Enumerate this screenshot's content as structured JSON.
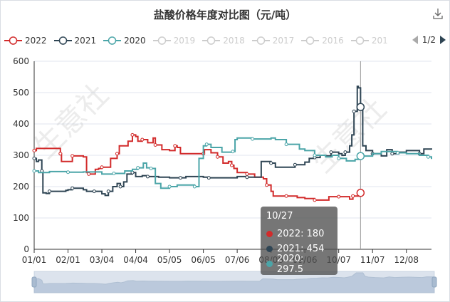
{
  "title": "盐酸价格年度对比图（元/吨）",
  "legend": [
    {
      "label": "2022",
      "color": "#d22b2b",
      "active": true
    },
    {
      "label": "2021",
      "color": "#2f4554",
      "active": true
    },
    {
      "label": "2020",
      "color": "#4ba5a8",
      "active": true
    },
    {
      "label": "2019",
      "color": "#cccccc",
      "active": false
    },
    {
      "label": "2018",
      "color": "#cccccc",
      "active": false
    },
    {
      "label": "2017",
      "color": "#cccccc",
      "active": false
    },
    {
      "label": "2016",
      "color": "#cccccc",
      "active": false
    },
    {
      "label": "201",
      "color": "#cccccc",
      "active": false
    }
  ],
  "legend_page": "1/2",
  "watermark": [
    "生意社",
    "生意社"
  ],
  "tooltip": {
    "date": "10/27",
    "rows": [
      {
        "text": "2022: 180",
        "color": "#d22b2b"
      },
      {
        "text": "2021: 454",
        "color": "#2f4554"
      },
      {
        "text": "2020: 297.5",
        "color": "#4ba5a8"
      }
    ]
  },
  "chart_data": {
    "type": "line",
    "title": "盐酸价格年度对比图（元/吨）",
    "x_ticks": [
      "01/01",
      "02/01",
      "03/04",
      "04/04",
      "05/05",
      "06/05",
      "07/06",
      "08/06",
      "09/06",
      "10/07",
      "11/07",
      "12/08"
    ],
    "ylim": [
      0,
      600
    ],
    "y_ticks": [
      0,
      100,
      200,
      300,
      400,
      500,
      600
    ],
    "grid": true,
    "hover_x": "10/27",
    "series": [
      {
        "name": "2022",
        "color": "#d22b2b",
        "points": [
          [
            "01/01",
            315
          ],
          [
            "01/03",
            322
          ],
          [
            "01/20",
            322
          ],
          [
            "01/25",
            305
          ],
          [
            "01/26",
            280
          ],
          [
            "02/01",
            280
          ],
          [
            "02/05",
            298
          ],
          [
            "02/15",
            295
          ],
          [
            "02/18",
            245
          ],
          [
            "02/20",
            240
          ],
          [
            "02/26",
            255
          ],
          [
            "03/01",
            258
          ],
          [
            "03/04",
            262
          ],
          [
            "03/10",
            262
          ],
          [
            "03/12",
            290
          ],
          [
            "03/18",
            305
          ],
          [
            "03/20",
            330
          ],
          [
            "03/28",
            345
          ],
          [
            "04/01",
            365
          ],
          [
            "04/04",
            360
          ],
          [
            "04/06",
            345
          ],
          [
            "04/10",
            350
          ],
          [
            "04/15",
            340
          ],
          [
            "04/20",
            355
          ],
          [
            "04/22",
            333
          ],
          [
            "04/28",
            318
          ],
          [
            "05/05",
            315
          ],
          [
            "05/10",
            330
          ],
          [
            "05/12",
            325
          ],
          [
            "05/15",
            305
          ],
          [
            "06/05",
            305
          ],
          [
            "06/06",
            318
          ],
          [
            "06/12",
            308
          ],
          [
            "06/18",
            295
          ],
          [
            "06/23",
            275
          ],
          [
            "06/28",
            280
          ],
          [
            "07/01",
            268
          ],
          [
            "07/03",
            258
          ],
          [
            "07/06",
            245
          ],
          [
            "07/15",
            240
          ],
          [
            "07/22",
            230
          ],
          [
            "07/30",
            225
          ],
          [
            "08/02",
            205
          ],
          [
            "08/06",
            185
          ],
          [
            "08/08",
            170
          ],
          [
            "08/20",
            170
          ],
          [
            "08/30",
            165
          ],
          [
            "09/06",
            162
          ],
          [
            "09/15",
            157
          ],
          [
            "09/25",
            157
          ],
          [
            "09/28",
            168
          ],
          [
            "10/07",
            168
          ],
          [
            "10/14",
            168
          ],
          [
            "10/17",
            160
          ],
          [
            "10/20",
            170
          ],
          [
            "10/27",
            180
          ]
        ]
      },
      {
        "name": "2021",
        "color": "#2f4554",
        "points": [
          [
            "01/01",
            290
          ],
          [
            "01/03",
            280
          ],
          [
            "01/05",
            285
          ],
          [
            "01/08",
            250
          ],
          [
            "01/09",
            180
          ],
          [
            "01/12",
            178
          ],
          [
            "01/15",
            185
          ],
          [
            "01/30",
            188
          ],
          [
            "02/01",
            190
          ],
          [
            "02/05",
            195
          ],
          [
            "02/15",
            190
          ],
          [
            "02/18",
            185
          ],
          [
            "02/25",
            185
          ],
          [
            "03/04",
            177
          ],
          [
            "03/07",
            172
          ],
          [
            "03/10",
            185
          ],
          [
            "03/14",
            200
          ],
          [
            "03/18",
            210
          ],
          [
            "03/21",
            200
          ],
          [
            "03/24",
            215
          ],
          [
            "03/27",
            240
          ],
          [
            "04/01",
            245
          ],
          [
            "04/04",
            232
          ],
          [
            "04/10",
            235
          ],
          [
            "04/15",
            232
          ],
          [
            "04/25",
            230
          ],
          [
            "05/05",
            228
          ],
          [
            "05/15",
            228
          ],
          [
            "05/20",
            232
          ],
          [
            "06/05",
            230
          ],
          [
            "06/10",
            228
          ],
          [
            "06/20",
            228
          ],
          [
            "07/06",
            232
          ],
          [
            "07/15",
            230
          ],
          [
            "07/25",
            230
          ],
          [
            "07/28",
            280
          ],
          [
            "08/06",
            275
          ],
          [
            "08/10",
            262
          ],
          [
            "08/25",
            262
          ],
          [
            "08/28",
            270
          ],
          [
            "09/06",
            278
          ],
          [
            "09/10",
            290
          ],
          [
            "09/15",
            293
          ],
          [
            "09/20",
            300
          ],
          [
            "09/25",
            298
          ],
          [
            "09/30",
            310
          ],
          [
            "10/07",
            305
          ],
          [
            "10/10",
            300
          ],
          [
            "10/13",
            310
          ],
          [
            "10/17",
            330
          ],
          [
            "10/19",
            365
          ],
          [
            "10/21",
            440
          ],
          [
            "10/24",
            520
          ],
          [
            "10/25",
            515
          ],
          [
            "10/27",
            454
          ],
          [
            "10/29",
            330
          ],
          [
            "11/01",
            315
          ],
          [
            "11/07",
            305
          ],
          [
            "11/15",
            298
          ],
          [
            "11/20",
            318
          ],
          [
            "11/25",
            305
          ],
          [
            "12/01",
            310
          ],
          [
            "12/08",
            315
          ],
          [
            "12/20",
            305
          ],
          [
            "12/24",
            320
          ],
          [
            "12/31",
            318
          ]
        ]
      },
      {
        "name": "2020",
        "color": "#4ba5a8",
        "points": [
          [
            "01/01",
            250
          ],
          [
            "01/05",
            245
          ],
          [
            "01/15",
            248
          ],
          [
            "02/01",
            246
          ],
          [
            "02/15",
            247
          ],
          [
            "03/04",
            240
          ],
          [
            "03/15",
            242
          ],
          [
            "03/25",
            250
          ],
          [
            "04/01",
            255
          ],
          [
            "04/06",
            260
          ],
          [
            "04/11",
            275
          ],
          [
            "04/14",
            260
          ],
          [
            "04/18",
            258
          ],
          [
            "04/22",
            210
          ],
          [
            "04/27",
            195
          ],
          [
            "05/05",
            200
          ],
          [
            "05/12",
            205
          ],
          [
            "05/25",
            205
          ],
          [
            "05/28",
            200
          ],
          [
            "06/01",
            290
          ],
          [
            "06/05",
            330
          ],
          [
            "06/08",
            335
          ],
          [
            "06/12",
            325
          ],
          [
            "06/22",
            310
          ],
          [
            "07/02",
            312
          ],
          [
            "07/04",
            350
          ],
          [
            "07/06",
            355
          ],
          [
            "07/20",
            352
          ],
          [
            "08/06",
            355
          ],
          [
            "08/10",
            350
          ],
          [
            "08/20",
            335
          ],
          [
            "09/01",
            320
          ],
          [
            "09/06",
            315
          ],
          [
            "09/15",
            300
          ],
          [
            "09/25",
            295
          ],
          [
            "10/01",
            300
          ],
          [
            "10/07",
            290
          ],
          [
            "10/14",
            282
          ],
          [
            "10/22",
            287
          ],
          [
            "10/27",
            297.5
          ],
          [
            "11/07",
            305
          ],
          [
            "11/15",
            312
          ],
          [
            "11/30",
            308
          ],
          [
            "12/08",
            305
          ],
          [
            "12/20",
            300
          ],
          [
            "12/28",
            295
          ],
          [
            "12/31",
            288
          ]
        ]
      }
    ]
  }
}
